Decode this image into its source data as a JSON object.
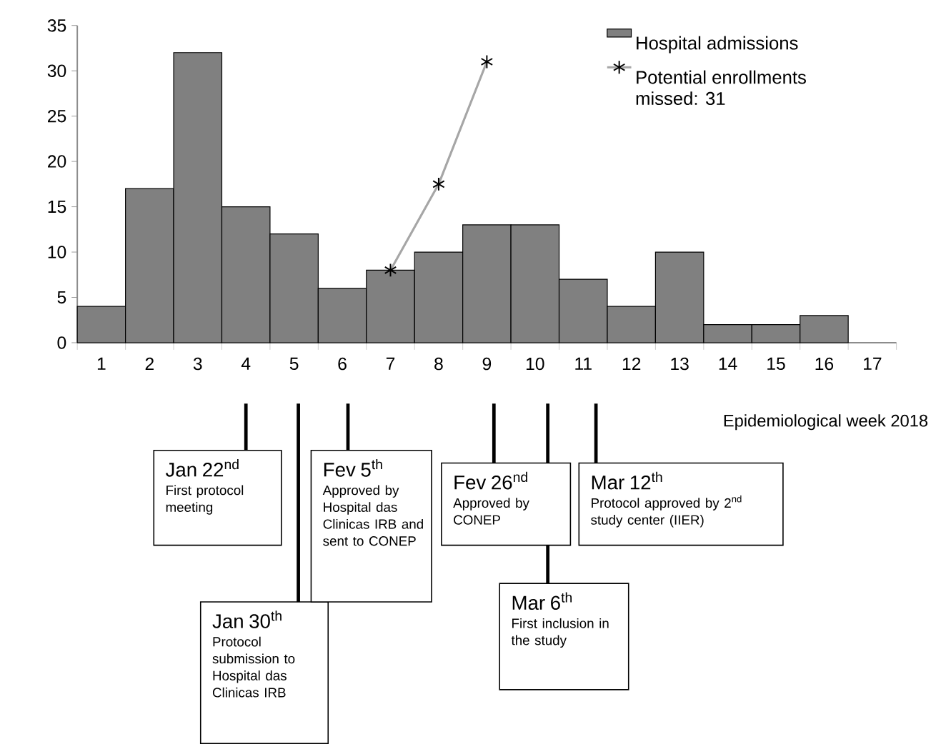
{
  "chart_data": {
    "type": "bar",
    "categories": [
      "1",
      "2",
      "3",
      "4",
      "5",
      "6",
      "7",
      "8",
      "9",
      "10",
      "11",
      "12",
      "13",
      "14",
      "15",
      "16",
      "17"
    ],
    "series": [
      {
        "name": "Hospital admissions",
        "color": "#808080",
        "values": [
          4,
          17,
          32,
          15,
          12,
          6,
          8,
          10,
          13,
          13,
          7,
          4,
          10,
          2,
          2,
          3,
          null
        ]
      },
      {
        "name": "Potential enrollments missed: 31",
        "type": "line",
        "color": "#a6a6a6",
        "marker": "cross",
        "values": [
          null,
          null,
          null,
          null,
          null,
          null,
          8,
          17.5,
          31,
          null,
          null,
          null,
          null,
          null,
          null,
          null,
          null
        ]
      }
    ],
    "ylim": [
      0,
      35
    ],
    "yticks": [
      0,
      5,
      10,
      15,
      20,
      25,
      30,
      35
    ],
    "xlabel": "Epidemiological week 2018",
    "legend": "top right",
    "annotations": [
      "Jan 22$^{nd}$",
      "First protocol meeting",
      "Jan 30$^{th}$",
      "Protocol submission to Hospital das Clinicas IRB",
      "Fev 5$^{th}$",
      "Approved by Hospital das Clinicas IRB and sent to CONEP",
      "Fev 26$^{nd}$",
      "Approved by CONEP",
      "Mar 6$^{th}$",
      "First inclusion in the study",
      "Mar 12$^{th}$",
      "Protocol approved by 2$^{nd}$ study center (IIER)"
    ]
  }
}
